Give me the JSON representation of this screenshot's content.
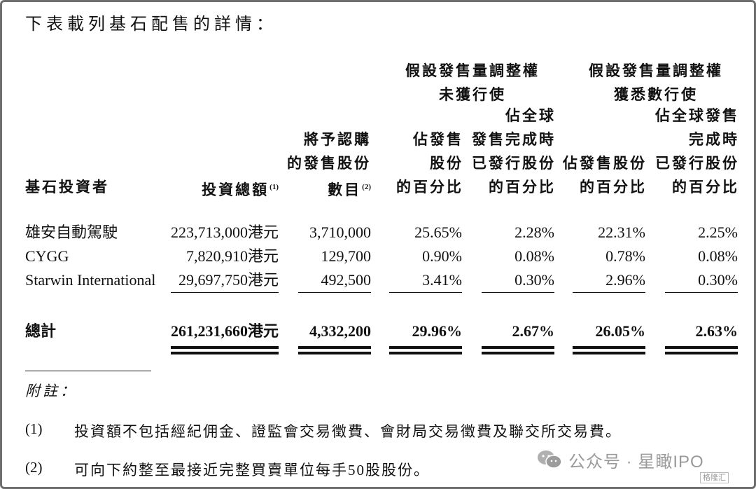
{
  "title": "下表載列基石配售的詳情：",
  "headers": {
    "group_unexercised": [
      "假設發售量調整權",
      "未獲行使"
    ],
    "group_fully_exercised": [
      "假設發售量調整權",
      "獲悉數行使"
    ],
    "investor": "基石投資者",
    "investment": "投資總額",
    "investment_note": "(1)",
    "shares": [
      "將予認購",
      "的發售股份",
      "數目"
    ],
    "shares_note": "(2)",
    "col_a": [
      "佔發售",
      "股份",
      "的百分比"
    ],
    "col_b": [
      "佔全球",
      "發售完成時",
      "已發行股份",
      "的百分比"
    ],
    "col_c": [
      "佔發售股份",
      "的百分比"
    ],
    "col_d": [
      "佔全球發售",
      "完成時",
      "已發行股份",
      "的百分比"
    ]
  },
  "rows": [
    {
      "investor": "雄安自動駕駛",
      "investment": "223,713,000港元",
      "shares": "3,710,000",
      "pct_a": "25.65%",
      "pct_b": "2.28%",
      "pct_c": "22.31%",
      "pct_d": "2.25%"
    },
    {
      "investor": "CYGG",
      "investment": "7,820,910港元",
      "shares": "129,700",
      "pct_a": "0.90%",
      "pct_b": "0.08%",
      "pct_c": "0.78%",
      "pct_d": "0.08%"
    },
    {
      "investor": "Starwin International",
      "investment": "29,697,750港元",
      "shares": "492,500",
      "pct_a": "3.41%",
      "pct_b": "0.30%",
      "pct_c": "2.96%",
      "pct_d": "0.30%"
    }
  ],
  "total": {
    "investor": "總計",
    "investment": "261,231,660港元",
    "shares": "4,332,200",
    "pct_a": "29.96%",
    "pct_b": "2.67%",
    "pct_c": "26.05%",
    "pct_d": "2.63%"
  },
  "notes_label": "附註：",
  "notes": [
    {
      "num": "(1)",
      "text": "投資額不包括經紀佣金、證監會交易徵費、會財局交易徵費及聯交所交易費。"
    },
    {
      "num": "(2)",
      "text": "可向下約整至最接近完整買賣單位每手50股股份。"
    }
  ],
  "watermark": "公众号 · 星瞰IPO",
  "corner_mark": "格隆汇",
  "icon": "wechat-icon"
}
